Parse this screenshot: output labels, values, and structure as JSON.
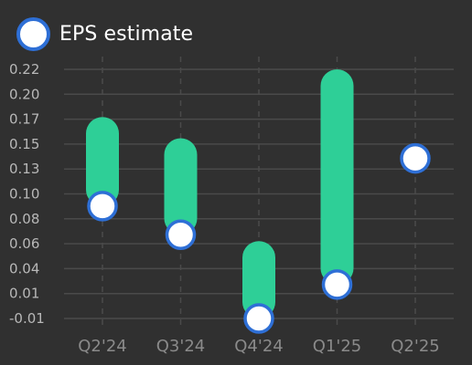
{
  "legend": {
    "label": "EPS estimate"
  },
  "colors": {
    "background": "#303030",
    "bar": "#2ecf97",
    "marker_fill": "#ffffff",
    "marker_stroke": "#2e6fd6",
    "grid": "#4a4a4a"
  },
  "chart_data": {
    "type": "bar",
    "categories": [
      "Q2'24",
      "Q3'24",
      "Q4'24",
      "Q1'25",
      "Q2'25"
    ],
    "series": [
      {
        "name": "EPS estimate",
        "values": [
          0.096,
          0.069,
          -0.01,
          0.022,
          0.141
        ]
      },
      {
        "values": [
          0.18,
          0.16,
          0.063,
          0.225,
          null
        ]
      }
    ],
    "yticks": [
      "-0.01",
      "0.01",
      "0.04",
      "0.06",
      "0.08",
      "0.10",
      "0.13",
      "0.15",
      "0.17",
      "0.20",
      "0.22"
    ],
    "ylim": [
      -0.01,
      0.225
    ],
    "grid": true,
    "legend_position": "top-left"
  }
}
